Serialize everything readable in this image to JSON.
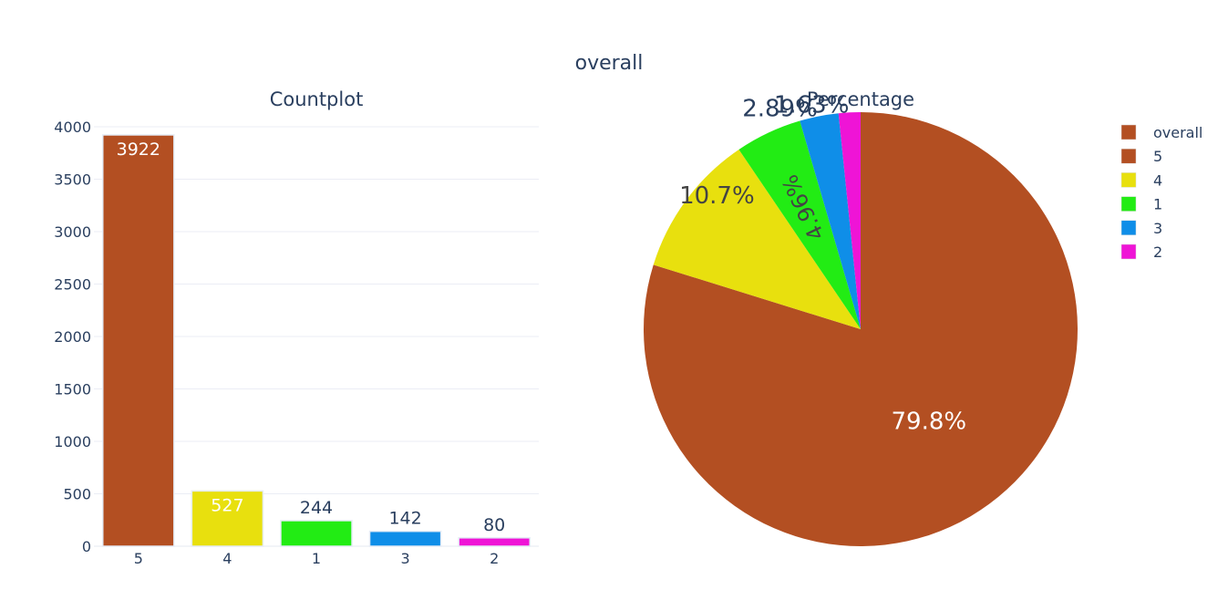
{
  "title": "overall",
  "chart_data": [
    {
      "type": "bar",
      "title": "Countplot",
      "categories": [
        "5",
        "4",
        "1",
        "3",
        "2"
      ],
      "values": [
        3922,
        527,
        244,
        142,
        80
      ],
      "colors": [
        "#b34f22",
        "#e8e00e",
        "#22ec14",
        "#0f8ee8",
        "#ef14d6"
      ],
      "ylim": [
        0,
        4000
      ],
      "yticks": [
        0,
        500,
        1000,
        1500,
        2000,
        2500,
        3000,
        3500,
        4000
      ],
      "grid": true,
      "data_labels": [
        "3922",
        "527",
        "244",
        "142",
        "80"
      ]
    },
    {
      "type": "pie",
      "title": "Percentage",
      "labels": [
        "5",
        "4",
        "1",
        "3",
        "2"
      ],
      "values": [
        3922,
        527,
        244,
        142,
        80
      ],
      "percent_labels": [
        "79.8%",
        "10.7%",
        "4.96%",
        "2.89%",
        "1.63%"
      ],
      "colors": [
        "#b34f22",
        "#e8e00e",
        "#22ec14",
        "#0f8ee8",
        "#ef14d6"
      ],
      "legend": {
        "placement": "right",
        "entries": [
          "overall",
          "5",
          "4",
          "1",
          "3",
          "2"
        ],
        "colors": [
          "#b34f22",
          "#b34f22",
          "#e8e00e",
          "#22ec14",
          "#0f8ee8",
          "#ef14d6"
        ]
      }
    }
  ]
}
